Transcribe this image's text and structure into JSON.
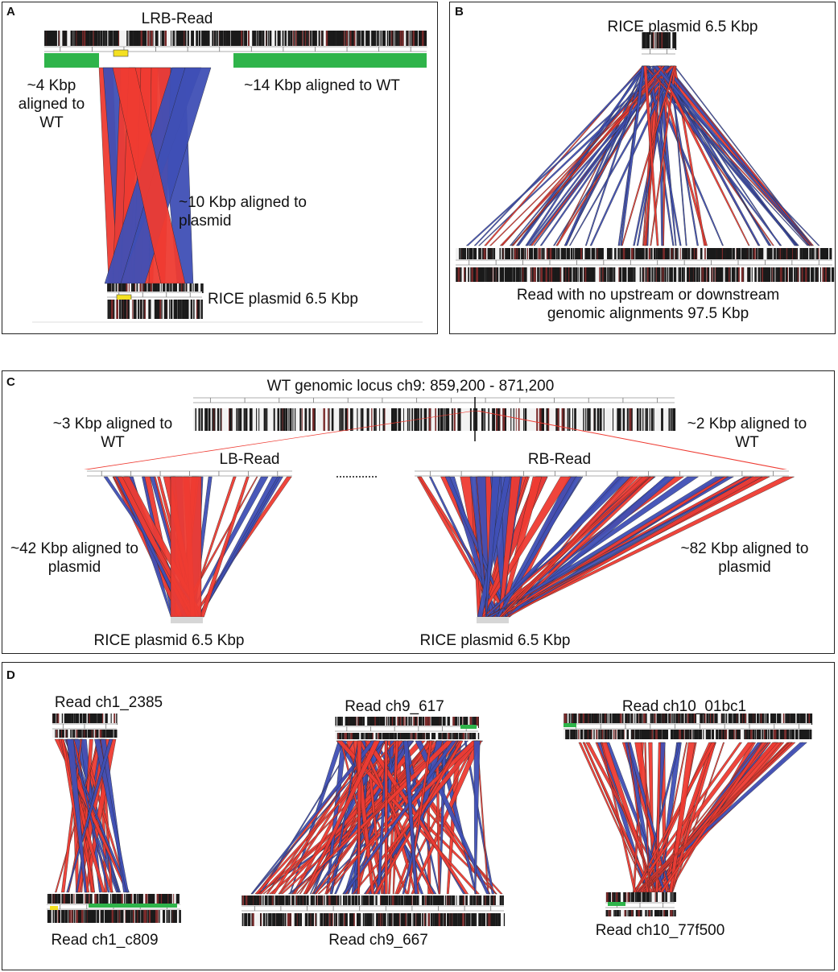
{
  "panels": {
    "A": {
      "label": "A",
      "read_title": "LRB-Read",
      "left_note": "~4 Kbp aligned to WT",
      "right_note": "~14 Kbp aligned to WT",
      "plasmid_note": "~10 Kbp aligned to plasmid",
      "bottom_label": "RICE plasmid 6.5 Kbp"
    },
    "B": {
      "label": "B",
      "top_label": "RICE plasmid 6.5 Kbp",
      "bottom_label": "Read with no upstream or downstream genomic alignments 97.5 Kbp"
    },
    "C": {
      "label": "C",
      "top_label": "WT genomic locus ch9: 859,200 - 871,200",
      "left_wt_note": "~3 Kbp aligned to WT",
      "right_wt_note": "~2 Kbp aligned to WT",
      "lb_title": "LB-Read",
      "rb_title": "RB-Read",
      "lb_plasmid_note": "~42 Kbp aligned to plasmid",
      "rb_plasmid_note": "~82 Kbp aligned to plasmid",
      "lb_bottom": "RICE plasmid 6.5 Kbp",
      "rb_bottom": "RICE plasmid 6.5 Kbp"
    },
    "D": {
      "label": "D",
      "reads": [
        {
          "top": "Read ch1_2385",
          "bottom": "Read ch1_c809"
        },
        {
          "top": "Read ch9_617",
          "bottom": "Read ch9_667"
        },
        {
          "top": "Read ch10_01bc1",
          "bottom": "Read ch10_77f500"
        }
      ]
    }
  },
  "colors": {
    "forward": "#ee3b32",
    "reverse": "#3f4fb5",
    "green": "#2fb44a",
    "yellow": "#f4e021"
  }
}
